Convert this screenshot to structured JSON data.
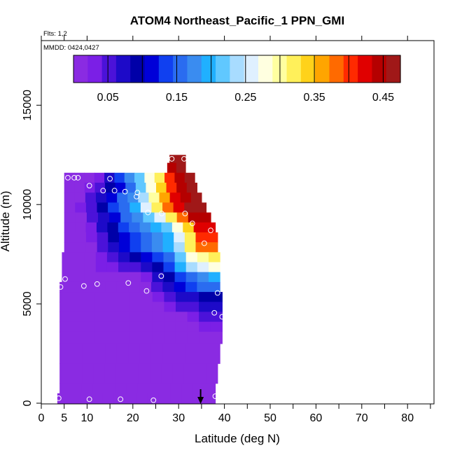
{
  "title": "ATOM4 Northeast_Pacific_1 PPN_GMI",
  "flts_note": "Flts: 1,2",
  "mmdd_note": "MMDD: 0424,0427",
  "chart_data": {
    "type": "heatmap",
    "title": "ATOM4 Northeast_Pacific_1 PPN_GMI",
    "xlabel": "Latitude (deg N)",
    "ylabel": "Altitude (m)",
    "xlim": [
      0,
      85
    ],
    "ylim": [
      0,
      17500
    ],
    "x_ticks": [
      0,
      5,
      10,
      20,
      30,
      40,
      50,
      60,
      70,
      80
    ],
    "x_minor_ticks": [
      15,
      25,
      35,
      45,
      55,
      65,
      75,
      85
    ],
    "y_ticks": [
      0,
      5000,
      10000,
      15000
    ],
    "colorbar": {
      "range": [
        0,
        0.475
      ],
      "tick_values": [
        0.05,
        0.15,
        0.25,
        0.35,
        0.45
      ],
      "tick_labels": [
        "0.05",
        "0.15",
        "0.25",
        "0.35",
        "0.45"
      ],
      "boundaries": [
        0,
        0.05,
        0.1,
        0.15,
        0.2,
        0.25,
        0.3,
        0.35,
        0.4,
        0.45,
        0.475
      ],
      "colors": [
        "#8a2be2",
        "#7b1fe6",
        "#4b12d9",
        "#1d0ac8",
        "#0000a8",
        "#0000d8",
        "#1040f0",
        "#2a6cf0",
        "#3a8cf0",
        "#20b0ff",
        "#60c8ff",
        "#a8dcff",
        "#dff0ff",
        "#ffffe0",
        "#ffffa0",
        "#fff05a",
        "#ffd21a",
        "#ffa500",
        "#ff6a00",
        "#ff2a00",
        "#e00000",
        "#b50000",
        "#a01818"
      ]
    },
    "rows": [
      {
        "y0": 12100,
        "y1": 12500,
        "x0": 28,
        "x1": 31.5,
        "v": [
          0.46
        ]
      },
      {
        "y0": 11600,
        "y1": 12100,
        "x0": 27.5,
        "x1": 31.5,
        "v": [
          0.44,
          0.46
        ]
      },
      {
        "y0": 11100,
        "y1": 11600,
        "x0": 5,
        "x1": 33.5,
        "v": [
          0.0,
          0.0,
          0.02,
          0.04,
          0.07,
          0.13,
          0.18,
          0.22,
          0.27,
          0.33,
          0.4,
          0.44,
          0.46
        ]
      },
      {
        "y0": 10600,
        "y1": 11100,
        "x0": 5,
        "x1": 34,
        "v": [
          0.0,
          0.0,
          0.03,
          0.06,
          0.09,
          0.12,
          0.16,
          0.22,
          0.28,
          0.35,
          0.41,
          0.45,
          0.46
        ]
      },
      {
        "y0": 10100,
        "y1": 10600,
        "x0": 5,
        "x1": 35,
        "v": [
          0.0,
          0.02,
          0.05,
          0.08,
          0.12,
          0.15,
          0.18,
          0.24,
          0.3,
          0.37,
          0.42,
          0.45,
          0.46
        ]
      },
      {
        "y0": 9600,
        "y1": 10100,
        "x0": 5,
        "x1": 36,
        "v": [
          0.0,
          0.03,
          0.06,
          0.1,
          0.13,
          0.16,
          0.2,
          0.25,
          0.31,
          0.38,
          0.43,
          0.46,
          0.46
        ]
      },
      {
        "y0": 9100,
        "y1": 9600,
        "x0": 5,
        "x1": 37,
        "v": [
          0.0,
          0.02,
          0.05,
          0.08,
          0.12,
          0.15,
          0.18,
          0.21,
          0.26,
          0.33,
          0.39,
          0.44,
          0.45
        ]
      },
      {
        "y0": 8600,
        "y1": 9100,
        "x0": 5,
        "x1": 38,
        "v": [
          0.0,
          0.01,
          0.04,
          0.07,
          0.1,
          0.13,
          0.15,
          0.17,
          0.19,
          0.22,
          0.28,
          0.35,
          0.42,
          0.43
        ]
      },
      {
        "y0": 8100,
        "y1": 8600,
        "x0": 5,
        "x1": 38.5,
        "v": [
          0.0,
          0.0,
          0.03,
          0.06,
          0.09,
          0.12,
          0.14,
          0.16,
          0.18,
          0.2,
          0.26,
          0.33,
          0.4,
          0.41
        ]
      },
      {
        "y0": 7600,
        "y1": 8100,
        "x0": 5,
        "x1": 38.5,
        "v": [
          0.0,
          0.0,
          0.02,
          0.05,
          0.08,
          0.11,
          0.13,
          0.15,
          0.17,
          0.19,
          0.24,
          0.31,
          0.38,
          0.39
        ]
      },
      {
        "y0": 7100,
        "y1": 7600,
        "x0": 4.5,
        "x1": 39,
        "v": [
          0.0,
          0.0,
          0.01,
          0.04,
          0.06,
          0.07,
          0.09,
          0.11,
          0.13,
          0.16,
          0.21,
          0.27,
          0.3,
          0.31
        ]
      },
      {
        "y0": 6600,
        "y1": 7100,
        "x0": 4.5,
        "x1": 39,
        "v": [
          0.0,
          0.0,
          0.0,
          0.03,
          0.04,
          0.05,
          0.06,
          0.08,
          0.1,
          0.14,
          0.19,
          0.23,
          0.26,
          0.27
        ]
      },
      {
        "y0": 6100,
        "y1": 6600,
        "x0": 4.5,
        "x1": 39,
        "v": [
          0.0,
          0.0,
          0.0,
          0.0,
          0.01,
          0.01,
          0.02,
          0.04,
          0.07,
          0.1,
          0.13,
          0.16,
          0.18,
          0.19
        ]
      },
      {
        "y0": 5600,
        "y1": 6100,
        "x0": 4,
        "x1": 39,
        "v": [
          0.0,
          0.0,
          0.0,
          0.0,
          0.0,
          0.0,
          0.0,
          0.02,
          0.05,
          0.08,
          0.11,
          0.13,
          0.15,
          0.16
        ]
      },
      {
        "y0": 5100,
        "y1": 5600,
        "x0": 4,
        "x1": 39.5,
        "v": [
          0.0,
          0.0,
          0.0,
          0.0,
          0.0,
          0.0,
          0.0,
          0.01,
          0.03,
          0.05,
          0.07,
          0.08,
          0.09,
          0.09
        ]
      },
      {
        "y0": 4600,
        "y1": 5100,
        "x0": 4,
        "x1": 39.5,
        "v": [
          0.0,
          0.0,
          0.0,
          0.0,
          0.0,
          0.0,
          0.0,
          0.0,
          0.01,
          0.03,
          0.05,
          0.06,
          0.07,
          0.07
        ]
      },
      {
        "y0": 4100,
        "y1": 4600,
        "x0": 4,
        "x1": 39.5,
        "v": [
          0.0,
          0.0,
          0.0,
          0.0,
          0.0,
          0.0,
          0.0,
          0.0,
          0.0,
          0.01,
          0.02,
          0.04,
          0.05,
          0.06
        ]
      },
      {
        "y0": 3600,
        "y1": 4100,
        "x0": 4,
        "x1": 39.5,
        "v": [
          0.0,
          0.0,
          0.0,
          0.0,
          0.0,
          0.0,
          0.0,
          0.0,
          0.0,
          0.0,
          0.01,
          0.02,
          0.03,
          0.03
        ]
      },
      {
        "y0": 3000,
        "y1": 3600,
        "x0": 4,
        "x1": 39.5,
        "v": [
          0.0,
          0.0,
          0.0,
          0.0,
          0.0,
          0.0,
          0.0,
          0.0,
          0.0,
          0.0,
          0.01,
          0.01,
          0.02,
          0.02
        ]
      },
      {
        "y0": 2000,
        "y1": 3000,
        "x0": 4,
        "x1": 39,
        "v": [
          0.0,
          0.0,
          0.0,
          0.0,
          0.0,
          0.0,
          0.0,
          0.0,
          0.0,
          0.0,
          0.0,
          0.01,
          0.01,
          0.01
        ]
      },
      {
        "y0": 1000,
        "y1": 2000,
        "x0": 4,
        "x1": 38.5,
        "v": [
          0.0,
          0.0,
          0.0,
          0.0,
          0.0,
          0.0,
          0.0,
          0.0,
          0.0,
          0.0,
          0.0,
          0.0,
          0.01,
          0.01
        ]
      },
      {
        "y0": 500,
        "y1": 1000,
        "x0": 4,
        "x1": 38,
        "v": [
          0.0,
          0.0,
          0.0,
          0.0,
          0.0,
          0.0,
          0.0,
          0.0,
          0.0,
          0.0,
          0.0,
          0.0,
          0.0,
          0.01
        ]
      },
      {
        "y0": 0,
        "y1": 500,
        "x0": 3.5,
        "x1": 38,
        "v": [
          0.0,
          0.0,
          0.0,
          0.0,
          0.0,
          0.0,
          0.0,
          0.0,
          0.0,
          0.0,
          0.0,
          0.0,
          0.0,
          0.0
        ]
      }
    ],
    "sample_points": [
      {
        "x": 28.5,
        "y": 12300
      },
      {
        "x": 31.2,
        "y": 12300
      },
      {
        "x": 5.8,
        "y": 11350
      },
      {
        "x": 7.2,
        "y": 11350
      },
      {
        "x": 8,
        "y": 11350
      },
      {
        "x": 15,
        "y": 11300
      },
      {
        "x": 10.5,
        "y": 10950
      },
      {
        "x": 13.5,
        "y": 10700
      },
      {
        "x": 16,
        "y": 10700
      },
      {
        "x": 18.3,
        "y": 10650
      },
      {
        "x": 21,
        "y": 10600
      },
      {
        "x": 20.8,
        "y": 10400
      },
      {
        "x": 23.3,
        "y": 9600
      },
      {
        "x": 26.3,
        "y": 9550
      },
      {
        "x": 31.4,
        "y": 9550
      },
      {
        "x": 33,
        "y": 9050
      },
      {
        "x": 37,
        "y": 8700
      },
      {
        "x": 35.6,
        "y": 8050
      },
      {
        "x": 26.2,
        "y": 6400
      },
      {
        "x": 5.2,
        "y": 6250
      },
      {
        "x": 4.2,
        "y": 5850
      },
      {
        "x": 9.3,
        "y": 5900
      },
      {
        "x": 12.2,
        "y": 6000
      },
      {
        "x": 19,
        "y": 6050
      },
      {
        "x": 23,
        "y": 5650
      },
      {
        "x": 38.5,
        "y": 5550
      },
      {
        "x": 37.8,
        "y": 4550
      },
      {
        "x": 39.5,
        "y": 4350
      },
      {
        "x": 3.8,
        "y": 250
      },
      {
        "x": 10.5,
        "y": 200
      },
      {
        "x": 17.3,
        "y": 200
      },
      {
        "x": 24.5,
        "y": 150
      },
      {
        "x": 38,
        "y": 350
      }
    ],
    "arrow_at_latitude": 34.8
  }
}
